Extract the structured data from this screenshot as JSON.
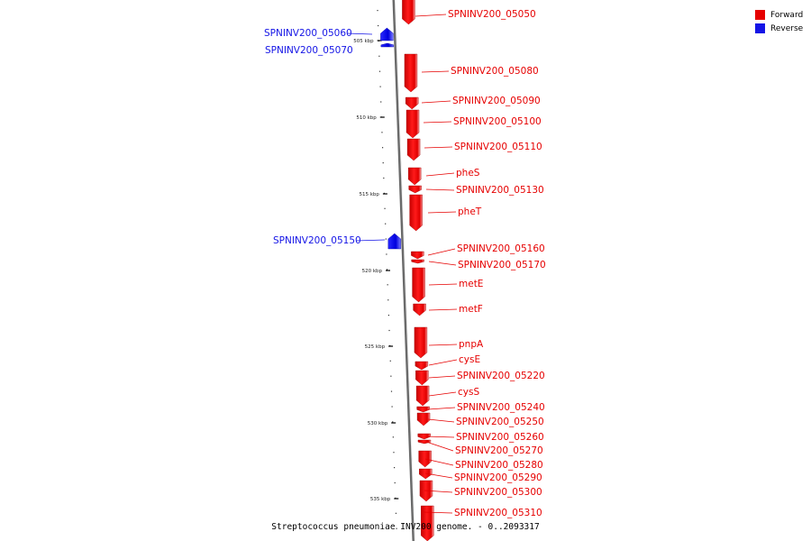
{
  "legend": {
    "forward_label": "Forward",
    "forward_color": "#e60000",
    "reverse_label": "Reverse",
    "reverse_color": "#1414e6"
  },
  "caption": "Streptococcus pneumoniae INV200 genome. - 0..2093317",
  "axis_ticks": [
    "505 kbp",
    "510 kbp",
    "515 kbp",
    "520 kbp",
    "525 kbp",
    "530 kbp",
    "535 kbp"
  ],
  "genes": [
    {
      "name": "SPNINV200_05050",
      "strand": "forward"
    },
    {
      "name": "SPNINV200_05060",
      "strand": "reverse"
    },
    {
      "name": "SPNINV200_05070",
      "strand": "reverse"
    },
    {
      "name": "SPNINV200_05080",
      "strand": "forward"
    },
    {
      "name": "SPNINV200_05090",
      "strand": "forward"
    },
    {
      "name": "SPNINV200_05100",
      "strand": "forward"
    },
    {
      "name": "SPNINV200_05110",
      "strand": "forward"
    },
    {
      "name": "pheS",
      "strand": "forward"
    },
    {
      "name": "SPNINV200_05130",
      "strand": "forward"
    },
    {
      "name": "pheT",
      "strand": "forward"
    },
    {
      "name": "SPNINV200_05150",
      "strand": "reverse"
    },
    {
      "name": "SPNINV200_05160",
      "strand": "forward"
    },
    {
      "name": "SPNINV200_05170",
      "strand": "forward"
    },
    {
      "name": "metE",
      "strand": "forward"
    },
    {
      "name": "metF",
      "strand": "forward"
    },
    {
      "name": "pnpA",
      "strand": "forward"
    },
    {
      "name": "cysE",
      "strand": "forward"
    },
    {
      "name": "SPNINV200_05220",
      "strand": "forward"
    },
    {
      "name": "cysS",
      "strand": "forward"
    },
    {
      "name": "SPNINV200_05240",
      "strand": "forward"
    },
    {
      "name": "SPNINV200_05250",
      "strand": "forward"
    },
    {
      "name": "SPNINV200_05260",
      "strand": "forward"
    },
    {
      "name": "SPNINV200_05270",
      "strand": "forward"
    },
    {
      "name": "SPNINV200_05280",
      "strand": "forward"
    },
    {
      "name": "SPNINV200_05290",
      "strand": "forward"
    },
    {
      "name": "SPNINV200_05300",
      "strand": "forward"
    },
    {
      "name": "SPNINV200_05310",
      "strand": "forward"
    }
  ]
}
